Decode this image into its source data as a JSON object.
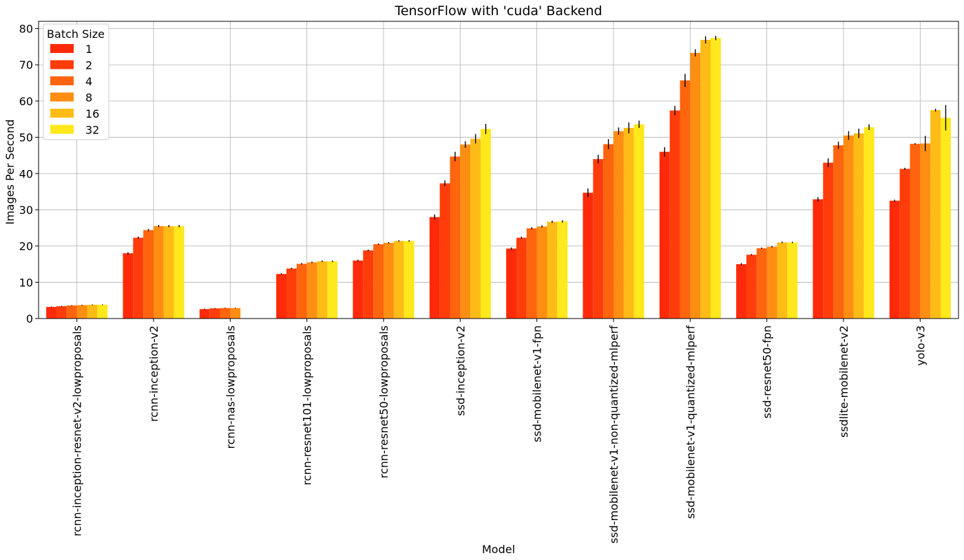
{
  "chart_data": {
    "type": "bar",
    "title": "TensorFlow with 'cuda' Backend",
    "xlabel": "Model",
    "ylabel": "Images Per Second",
    "ylim": [
      0,
      82
    ],
    "yticks": [
      0,
      10,
      20,
      30,
      40,
      50,
      60,
      70,
      80
    ],
    "grid": true,
    "legend": {
      "title": "Batch Size",
      "placement": "top-left"
    },
    "categories": [
      "rcnn-inception-resnet-v2-lowproposals",
      "rcnn-inception-v2",
      "rcnn-nas-lowproposals",
      "rcnn-resnet101-lowproposals",
      "rcnn-resnet50-lowproposals",
      "ssd-inception-v2",
      "ssd-mobilenet-v1-fpn",
      "ssd-mobilenet-v1-non-quantized-mlperf",
      "ssd-mobilenet-v1-quantized-mlperf",
      "ssd-resnet50-fpn",
      "ssdlite-mobilenet-v2",
      "yolo-v3"
    ],
    "series": [
      {
        "name": "1",
        "color": "#ff2a0a",
        "values": [
          3.2,
          18.0,
          2.6,
          12.3,
          16.0,
          28.0,
          19.3,
          34.7,
          46.0,
          15.0,
          32.9,
          32.5
        ],
        "errors": [
          0.1,
          0.3,
          0.1,
          0.2,
          0.2,
          0.7,
          0.3,
          1.2,
          1.3,
          0.3,
          0.6,
          0.3
        ]
      },
      {
        "name": "2",
        "color": "#ff3d0b",
        "values": [
          3.4,
          22.3,
          2.8,
          13.8,
          18.8,
          37.3,
          22.3,
          44.0,
          57.4,
          17.6,
          43.0,
          41.3
        ],
        "errors": [
          0.1,
          0.3,
          0.1,
          0.2,
          0.2,
          0.8,
          0.3,
          1.2,
          1.3,
          0.2,
          1.2,
          0.3
        ]
      },
      {
        "name": "4",
        "color": "#ff640e",
        "values": [
          3.6,
          24.4,
          2.9,
          15.1,
          20.5,
          44.7,
          24.9,
          48.1,
          65.7,
          19.4,
          47.8,
          48.2
        ],
        "errors": [
          0.1,
          0.3,
          0.1,
          0.2,
          0.2,
          1.3,
          0.3,
          1.4,
          1.8,
          0.2,
          1.0,
          0.2
        ]
      },
      {
        "name": "8",
        "color": "#ff8e12",
        "values": [
          3.7,
          25.5,
          2.9,
          15.5,
          20.9,
          48.0,
          25.4,
          51.7,
          73.3,
          19.8,
          50.5,
          48.3
        ],
        "errors": [
          0.1,
          0.3,
          0.1,
          0.2,
          0.2,
          0.9,
          0.3,
          1.0,
          1.0,
          0.2,
          1.2,
          2.1
        ]
      },
      {
        "name": "16",
        "color": "#ffbc16",
        "values": [
          3.8,
          25.5,
          null,
          15.8,
          21.4,
          49.6,
          26.7,
          52.6,
          76.9,
          21.0,
          51.1,
          57.5
        ],
        "errors": [
          0.1,
          0.3,
          null,
          0.2,
          0.2,
          1.3,
          0.3,
          1.5,
          1.0,
          0.2,
          1.3,
          0.4
        ]
      },
      {
        "name": "32",
        "color": "#ffe81b",
        "values": [
          3.8,
          25.5,
          null,
          15.8,
          21.4,
          52.3,
          26.8,
          53.6,
          77.4,
          21.0,
          52.8,
          55.4
        ],
        "errors": [
          0.1,
          0.3,
          null,
          0.2,
          0.2,
          1.4,
          0.3,
          1.0,
          0.6,
          0.2,
          0.8,
          3.5
        ]
      }
    ]
  }
}
